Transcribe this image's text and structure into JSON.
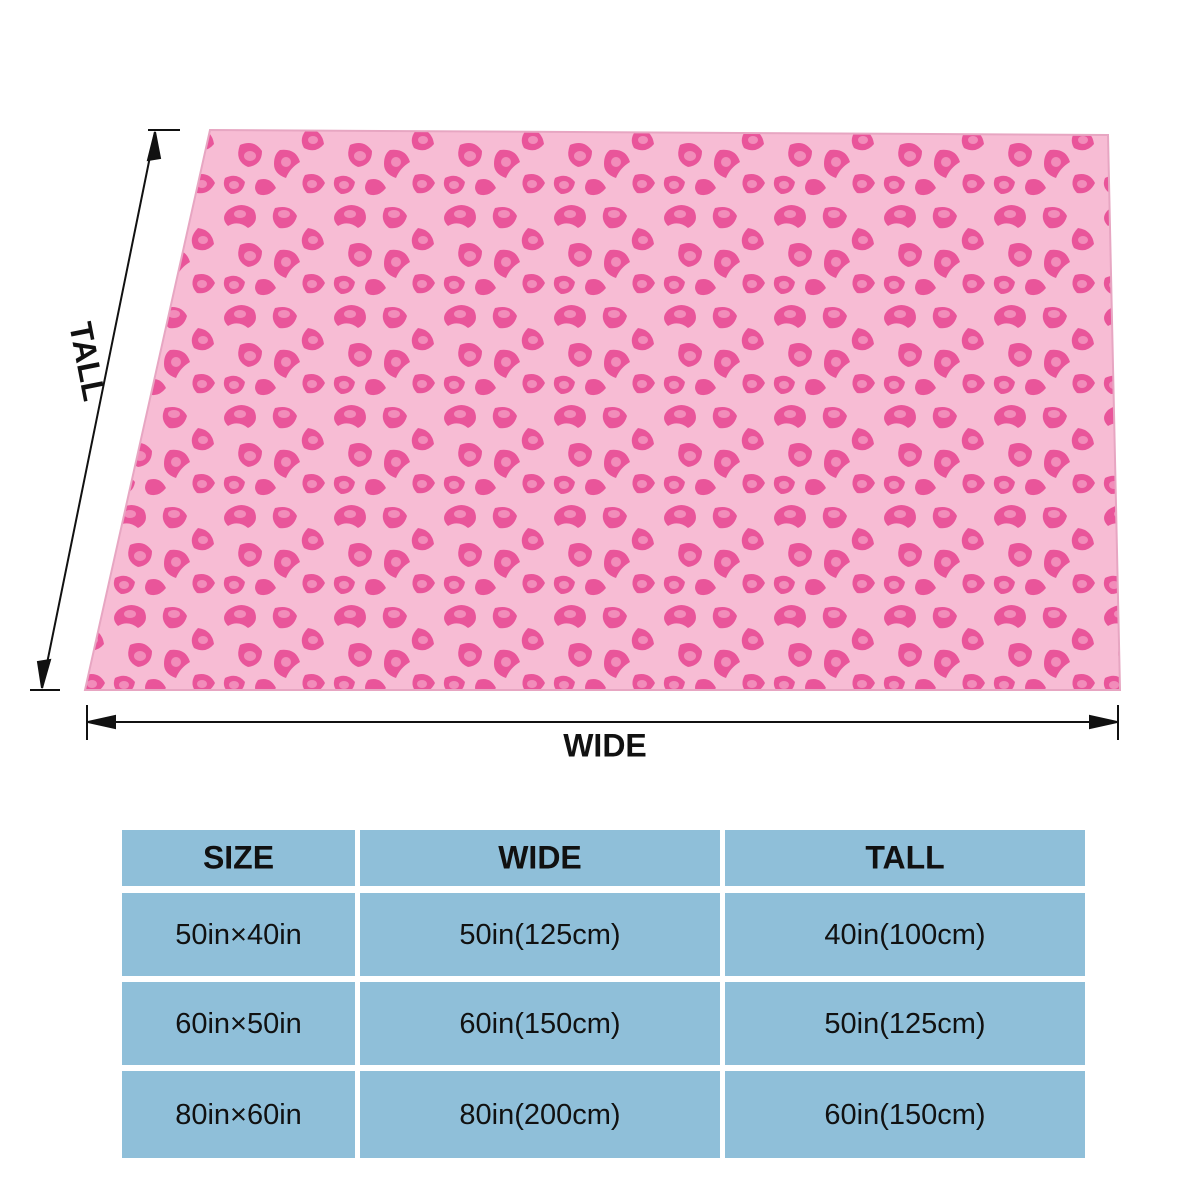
{
  "labels": {
    "tall": "TALL",
    "wide": "WIDE"
  },
  "table": {
    "header": [
      "SIZE",
      "WIDE",
      "TALL"
    ],
    "rows": [
      [
        "50in×40in",
        "50in(125cm)",
        "40in(100cm)"
      ],
      [
        "60in×50in",
        "60in(150cm)",
        "50in(125cm)"
      ],
      [
        "80in×60in",
        "80in(200cm)",
        "60in(150cm)"
      ]
    ]
  }
}
